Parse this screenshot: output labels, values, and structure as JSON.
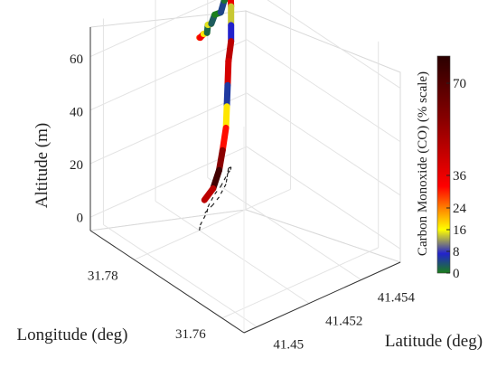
{
  "chart_data": {
    "type": "line3d",
    "xlabel": "Longitude (deg)",
    "ylabel": "Latitude (deg)",
    "zlabel": "Altitude (m)",
    "x_ticks": [
      "31.76",
      "31.78"
    ],
    "y_ticks": [
      "41.45",
      "41.452",
      "41.454"
    ],
    "z_ticks": [
      "0",
      "20",
      "40",
      "60"
    ],
    "xlim": [
      31.755,
      31.79
    ],
    "ylim": [
      41.4495,
      41.4555
    ],
    "zlim": [
      -5,
      72
    ],
    "colorbar": {
      "label": "Carbon Monoxide (CO) (% scale)",
      "ticks": [
        "0",
        "8",
        "16",
        "24",
        "36",
        "70"
      ],
      "colors": [
        "#1b7f1b",
        "#2222cc",
        "#ffff00",
        "#ff9900",
        "#ff0000",
        "#8b0000",
        "#2a0000"
      ]
    },
    "series": [
      {
        "points": [
          [
            31.78,
            41.452,
            67,
            30
          ],
          [
            31.781,
            41.4522,
            65,
            38
          ],
          [
            31.782,
            41.4525,
            64,
            18
          ],
          [
            31.783,
            41.4528,
            62,
            2
          ],
          [
            31.784,
            41.453,
            63,
            15
          ],
          [
            31.785,
            41.4533,
            61,
            3
          ],
          [
            31.786,
            41.4536,
            62,
            0
          ],
          [
            31.787,
            41.454,
            60,
            5
          ],
          [
            31.788,
            41.4543,
            62,
            1
          ],
          [
            31.789,
            41.4546,
            61,
            20
          ],
          [
            31.7895,
            41.4548,
            60,
            40
          ],
          [
            31.79,
            41.4549,
            55,
            14
          ],
          [
            31.79,
            41.4549,
            48,
            8
          ],
          [
            31.79,
            41.4549,
            42,
            50
          ],
          [
            31.79,
            41.4548,
            35,
            45
          ],
          [
            31.789,
            41.4546,
            28,
            6
          ],
          [
            31.788,
            41.4544,
            22,
            18
          ],
          [
            31.787,
            41.4542,
            16,
            35
          ],
          [
            31.786,
            41.4539,
            10,
            60
          ],
          [
            31.785,
            41.4536,
            5,
            75
          ],
          [
            31.784,
            41.4532,
            1,
            50
          ],
          [
            31.783,
            41.4527,
            0,
            40
          ]
        ]
      }
    ],
    "projection": "scatter",
    "grid": true,
    "legend": "none"
  }
}
